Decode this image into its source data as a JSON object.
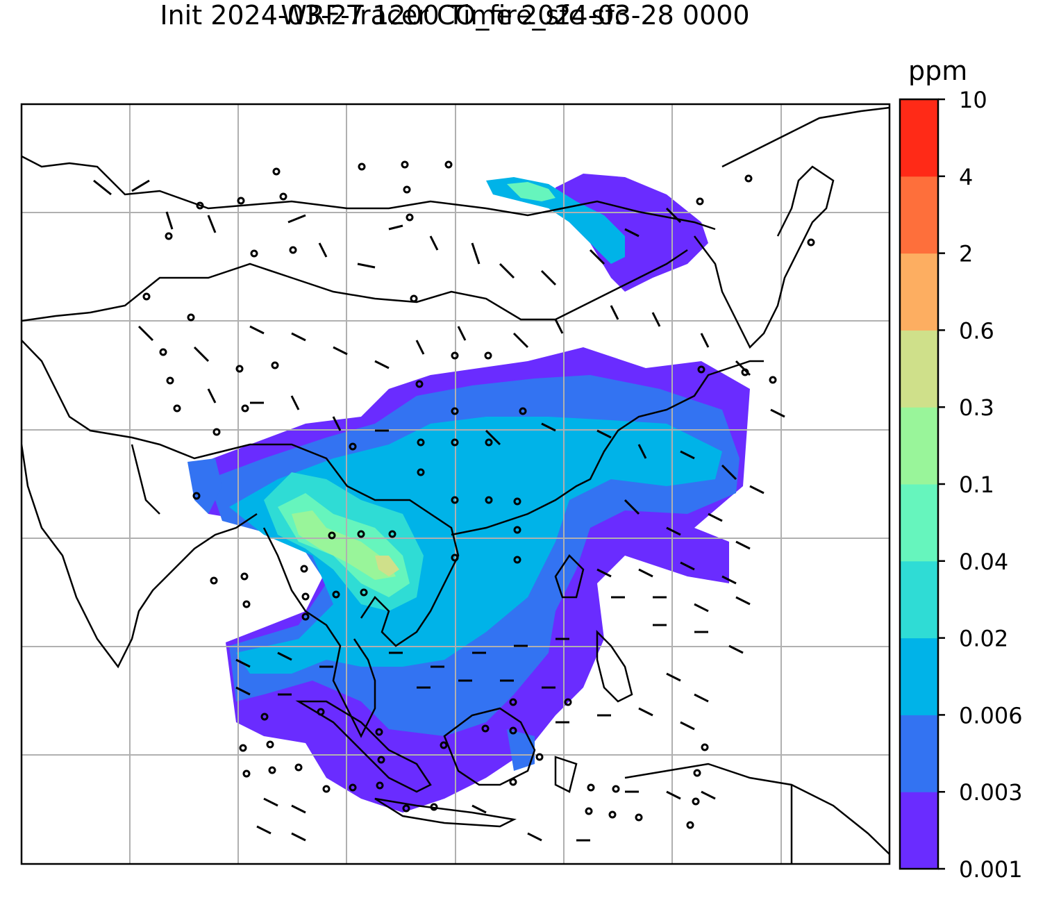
{
  "title_line1": "WRF-Tracer CO_fire_sfc sfc",
  "title_line2": "Init 2024-03-27 1200 Time 2024-03-28 0000",
  "colorbar": {
    "unit": "ppm",
    "ticks": [
      "0.001",
      "0.003",
      "0.006",
      "0.02",
      "0.04",
      "0.1",
      "0.3",
      "0.6",
      "2",
      "4",
      "10"
    ],
    "colors": [
      "#6a2cff",
      "#3373f2",
      "#00b3e8",
      "#2fdcd5",
      "#66f5bd",
      "#99f59a",
      "#cfe08a",
      "#fdae61",
      "#fe6f3b",
      "#ff2a17"
    ]
  },
  "map_colors": {
    "coast": "#000000",
    "grid": "#b0b0b0",
    "barb": "#000000"
  }
}
